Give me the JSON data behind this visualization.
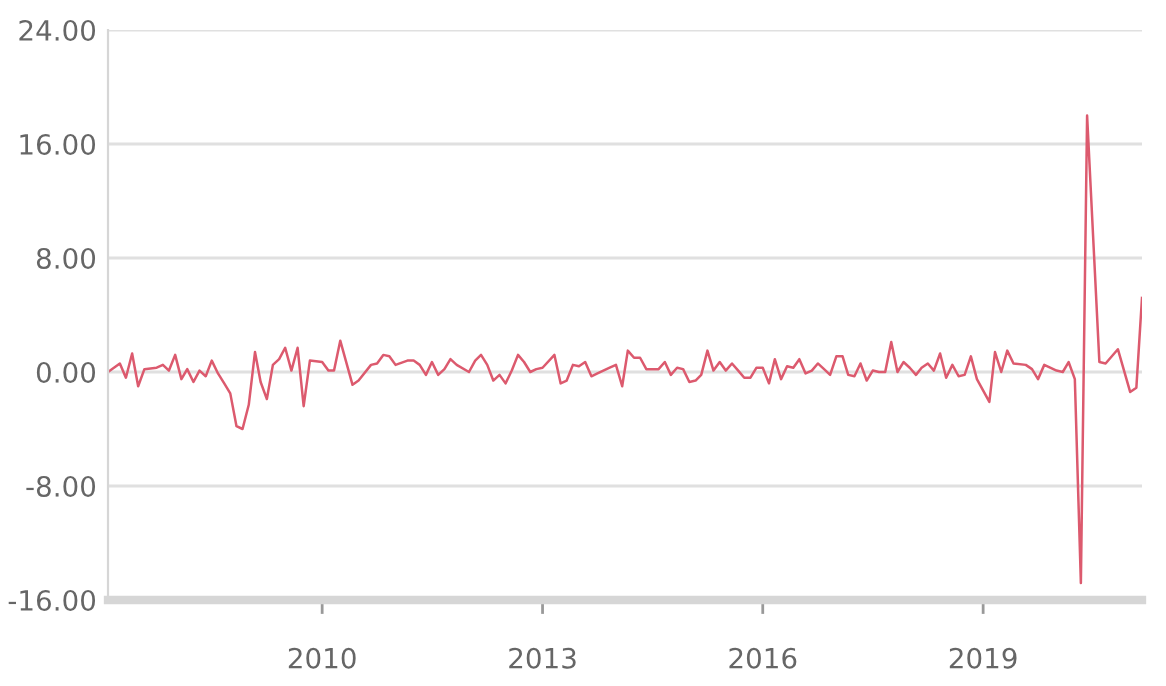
{
  "chart_data": {
    "type": "line",
    "x": [
      "2007-02",
      "2007-04",
      "2007-05",
      "2007-06",
      "2007-07",
      "2007-08",
      "2007-10",
      "2007-11",
      "2007-12",
      "2008-01",
      "2008-02",
      "2008-03",
      "2008-04",
      "2008-05",
      "2008-06",
      "2008-07",
      "2008-08",
      "2008-09",
      "2008-10",
      "2008-11",
      "2008-12",
      "2009-01",
      "2009-02",
      "2009-03",
      "2009-04",
      "2009-05",
      "2009-06",
      "2009-07",
      "2009-08",
      "2009-09",
      "2009-10",
      "2009-11",
      "2010-01",
      "2010-02",
      "2010-03",
      "2010-04",
      "2010-06",
      "2010-07",
      "2010-09",
      "2010-10",
      "2010-11",
      "2010-12",
      "2011-01",
      "2011-03",
      "2011-04",
      "2011-05",
      "2011-06",
      "2011-07",
      "2011-08",
      "2011-09",
      "2011-10",
      "2011-11",
      "2012-01",
      "2012-02",
      "2012-03",
      "2012-04",
      "2012-05",
      "2012-06",
      "2012-07",
      "2012-08",
      "2012-09",
      "2012-10",
      "2012-11",
      "2012-12",
      "2013-01",
      "2013-03",
      "2013-04",
      "2013-05",
      "2013-06",
      "2013-07",
      "2013-08",
      "2013-09",
      "2013-10",
      "2013-12",
      "2014-01",
      "2014-02",
      "2014-03",
      "2014-04",
      "2014-05",
      "2014-06",
      "2014-08",
      "2014-09",
      "2014-10",
      "2014-11",
      "2014-12",
      "2015-01",
      "2015-02",
      "2015-03",
      "2015-04",
      "2015-05",
      "2015-06",
      "2015-07",
      "2015-08",
      "2015-09",
      "2015-10",
      "2015-11",
      "2015-12",
      "2016-01",
      "2016-02",
      "2016-03",
      "2016-04",
      "2016-05",
      "2016-06",
      "2016-07",
      "2016-08",
      "2016-09",
      "2016-10",
      "2016-11",
      "2016-12",
      "2017-01",
      "2017-02",
      "2017-03",
      "2017-04",
      "2017-05",
      "2017-06",
      "2017-07",
      "2017-08",
      "2017-09",
      "2017-10",
      "2017-11",
      "2017-12",
      "2018-01",
      "2018-02",
      "2018-03",
      "2018-04",
      "2018-05",
      "2018-06",
      "2018-07",
      "2018-08",
      "2018-09",
      "2018-10",
      "2018-11",
      "2018-12",
      "2019-02",
      "2019-03",
      "2019-04",
      "2019-05",
      "2019-06",
      "2019-08",
      "2019-09",
      "2019-10",
      "2019-11",
      "2020-01",
      "2020-02",
      "2020-03",
      "2020-04",
      "2020-05",
      "2020-06",
      "2020-08",
      "2020-09",
      "2020-11",
      "2021-01",
      "2021-02",
      "2021-03"
    ],
    "series": [
      {
        "color": "#dc5a6e",
        "values": [
          0,
          0.6,
          -0.4,
          1.3,
          -1.0,
          0.2,
          0.3,
          0.5,
          0.1,
          1.2,
          -0.5,
          0.2,
          -0.7,
          0.1,
          -0.3,
          0.8,
          -0.1,
          -0.8,
          -1.5,
          -3.8,
          -4.0,
          -2.3,
          1.4,
          -0.7,
          -1.9,
          0.5,
          0.9,
          1.7,
          0.1,
          1.7,
          -2.4,
          0.8,
          0.7,
          0.1,
          0.1,
          2.2,
          -0.9,
          -0.6,
          0.5,
          0.6,
          1.2,
          1.1,
          0.5,
          0.8,
          0.8,
          0.5,
          -0.2,
          0.7,
          -0.2,
          0.2,
          0.9,
          0.5,
          0,
          0.8,
          1.2,
          0.5,
          -0.6,
          -0.2,
          -0.8,
          0.1,
          1.2,
          0.7,
          0,
          0.2,
          0.3,
          1.2,
          -0.8,
          -0.6,
          0.5,
          0.4,
          0.7,
          -0.3,
          -0.1,
          0.3,
          0.5,
          -1.0,
          1.5,
          1.0,
          1.0,
          0.2,
          0.2,
          0.7,
          -0.2,
          0.3,
          0.2,
          -0.7,
          -0.6,
          -0.2,
          1.5,
          0.1,
          0.7,
          0.1,
          0.6,
          0.1,
          -0.4,
          -0.4,
          0.3,
          0.3,
          -0.8,
          0.9,
          -0.5,
          0.4,
          0.3,
          0.9,
          -0.1,
          0.1,
          0.6,
          0.2,
          -0.2,
          1.1,
          1.1,
          -0.2,
          -0.3,
          0.6,
          -0.6,
          0.1,
          0,
          0,
          2.1,
          0,
          0.7,
          0.3,
          -0.2,
          0.3,
          0.6,
          0.1,
          1.3,
          -0.4,
          0.5,
          -0.3,
          -0.2,
          1.1,
          -0.5,
          -2.1,
          1.4,
          0,
          1.5,
          0.6,
          0.5,
          0.2,
          -0.5,
          0.5,
          0.1,
          0,
          0.7,
          -0.5,
          -14.8,
          18.0,
          0.7,
          0.6,
          1.6,
          -1.4,
          -1.1,
          5.2
        ]
      }
    ],
    "xlim": [
      "2007-02",
      "2021-03"
    ],
    "xticks": [
      {
        "value": "2010-01",
        "label": "2010"
      },
      {
        "value": "2013-01",
        "label": "2013"
      },
      {
        "value": "2016-01",
        "label": "2016"
      },
      {
        "value": "2019-01",
        "label": "2019"
      }
    ],
    "ylim": [
      -16,
      24
    ],
    "yticks": [
      {
        "value": -16,
        "label": "-16.00"
      },
      {
        "value": -8,
        "label": "-8.00"
      },
      {
        "value": 0,
        "label": "0.00"
      },
      {
        "value": 8,
        "label": "8.00"
      },
      {
        "value": 16,
        "label": "16.00"
      },
      {
        "value": 24,
        "label": "24.00"
      }
    ],
    "grid": "y",
    "marker": "none",
    "line_style": "solid"
  }
}
